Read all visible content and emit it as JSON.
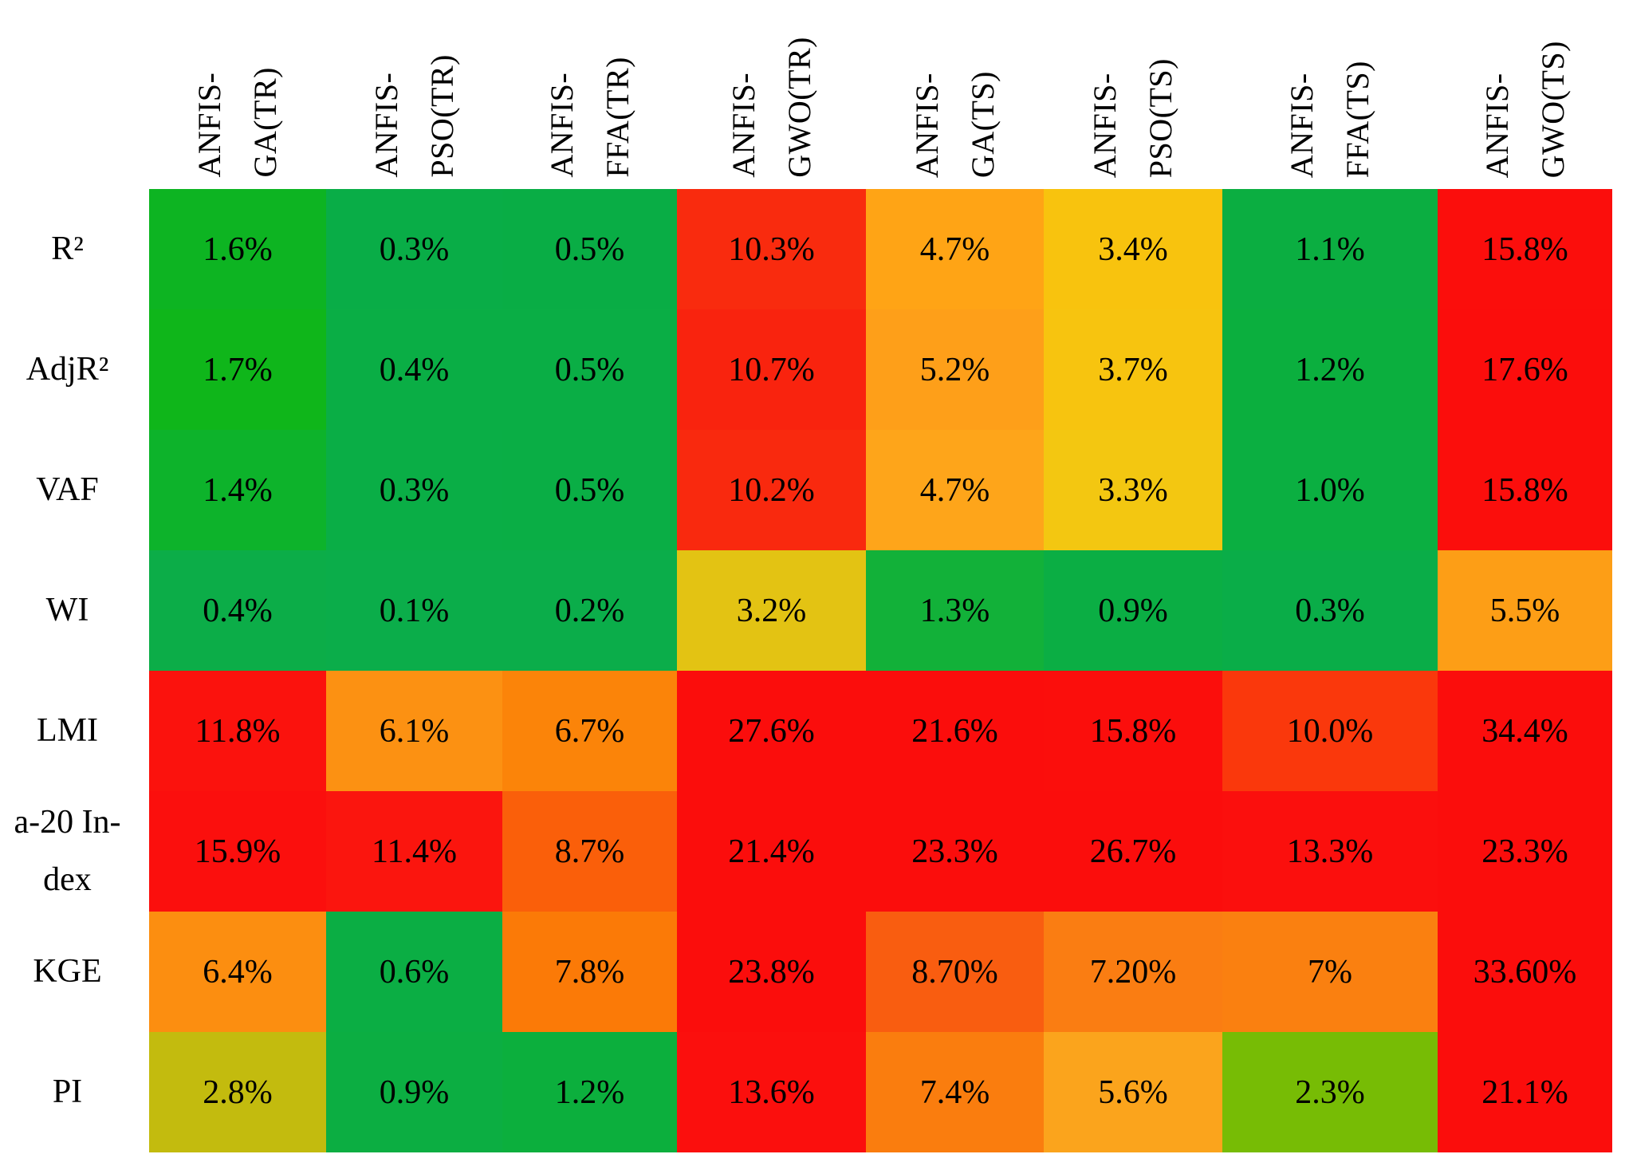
{
  "chart_data": {
    "type": "heatmap",
    "title": "",
    "xlabel": "",
    "ylabel": "",
    "legend": "none",
    "grid": "off",
    "columns": [
      "ANFIS-GA(TR)",
      "ANFIS-PSO(TR)",
      "ANFIS-FFA(TR)",
      "ANFIS-GWO(TR)",
      "ANFIS-GA(TS)",
      "ANFIS-PSO(TS)",
      "ANFIS-FFA(TS)",
      "ANFIS-GWO(TS)"
    ],
    "column_header_lines": [
      [
        "ANFIS-",
        "GA(TR)"
      ],
      [
        "ANFIS-",
        "PSO(TR)"
      ],
      [
        "ANFIS-",
        "FFA(TR)"
      ],
      [
        "ANFIS-",
        "GWO(TR)"
      ],
      [
        "ANFIS-",
        "GA(TS)"
      ],
      [
        "ANFIS-",
        "PSO(TS)"
      ],
      [
        "ANFIS-",
        "FFA(TS)"
      ],
      [
        "ANFIS-",
        "GWO(TS)"
      ]
    ],
    "rows": [
      "R²",
      "AdjR²",
      "VAF",
      "WI",
      "LMI",
      "a-20 In-\ndex",
      "KGE",
      "PI"
    ],
    "cell_labels": [
      [
        "1.6%",
        "0.3%",
        "0.5%",
        "10.3%",
        "4.7%",
        "3.4%",
        "1.1%",
        "15.8%"
      ],
      [
        "1.7%",
        "0.4%",
        "0.5%",
        "10.7%",
        "5.2%",
        "3.7%",
        "1.2%",
        "17.6%"
      ],
      [
        "1.4%",
        "0.3%",
        "0.5%",
        "10.2%",
        "4.7%",
        "3.3%",
        "1.0%",
        "15.8%"
      ],
      [
        "0.4%",
        "0.1%",
        "0.2%",
        "3.2%",
        "1.3%",
        "0.9%",
        "0.3%",
        "5.5%"
      ],
      [
        "11.8%",
        "6.1%",
        "6.7%",
        "27.6%",
        "21.6%",
        "15.8%",
        "10.0%",
        "34.4%"
      ],
      [
        "15.9%",
        "11.4%",
        "8.7%",
        "21.4%",
        "23.3%",
        "26.7%",
        "13.3%",
        "23.3%"
      ],
      [
        "6.4%",
        "0.6%",
        "7.8%",
        "23.8%",
        "8.70%",
        "7.20%",
        "7%",
        "33.60%"
      ],
      [
        "2.8%",
        "0.9%",
        "1.2%",
        "13.6%",
        "7.4%",
        "5.6%",
        "2.3%",
        "21.1%"
      ]
    ],
    "values_pct": [
      [
        1.6,
        0.3,
        0.5,
        10.3,
        4.7,
        3.4,
        1.1,
        15.8
      ],
      [
        1.7,
        0.4,
        0.5,
        10.7,
        5.2,
        3.7,
        1.2,
        17.6
      ],
      [
        1.4,
        0.3,
        0.5,
        10.2,
        4.7,
        3.3,
        1.0,
        15.8
      ],
      [
        0.4,
        0.1,
        0.2,
        3.2,
        1.3,
        0.9,
        0.3,
        5.5
      ],
      [
        11.8,
        6.1,
        6.7,
        27.6,
        21.6,
        15.8,
        10.0,
        34.4
      ],
      [
        15.9,
        11.4,
        8.7,
        21.4,
        23.3,
        26.7,
        13.3,
        23.3
      ],
      [
        6.4,
        0.6,
        7.8,
        23.8,
        8.7,
        7.2,
        7,
        33.6
      ],
      [
        2.8,
        0.9,
        1.2,
        13.6,
        7.4,
        5.6,
        2.3,
        21.1
      ]
    ],
    "cell_colors": [
      [
        "#0db422",
        "#09ad47",
        "#09ad45",
        "#f92b0e",
        "#ffa415",
        "#f8c30e",
        "#0bae41",
        "#fb0e0c"
      ],
      [
        "#0fb61a",
        "#0aae45",
        "#0aae45",
        "#f9230e",
        "#fe9f19",
        "#f7c40f",
        "#0baf3e",
        "#fb0d0c"
      ],
      [
        "#0db32b",
        "#0aae46",
        "#0aae45",
        "#f9290e",
        "#fea51a",
        "#f3c711",
        "#0baf41",
        "#fb0e0c"
      ],
      [
        "#0cad48",
        "#0bad4a",
        "#0bad4a",
        "#e3c313",
        "#12b139",
        "#0bae44",
        "#0aad48",
        "#fd9e16"
      ],
      [
        "#fb120d",
        "#fc9112",
        "#fb8409",
        "#fb0d0c",
        "#fb0d0c",
        "#fb0e0c",
        "#fa380c",
        "#fb0d0c"
      ],
      [
        "#fb0f0d",
        "#fb150e",
        "#fa5f0a",
        "#fb0d0c",
        "#fb0d0c",
        "#fb0d0c",
        "#fb0f0d",
        "#fb0d0c"
      ],
      [
        "#fc8e10",
        "#0bae44",
        "#fb7a07",
        "#fb0d0c",
        "#f95d10",
        "#fa7d12",
        "#fa8010",
        "#fb0d0c"
      ],
      [
        "#c3bb0e",
        "#0cae42",
        "#0caf3d",
        "#fb0f0d",
        "#fa7d0e",
        "#fba41c",
        "#77bc05",
        "#fb0d0c"
      ]
    ],
    "colorscale_note": {
      "low_color": "#0bae44",
      "mid_color": "#f8c30e",
      "high_color": "#fb0d0c"
    }
  }
}
